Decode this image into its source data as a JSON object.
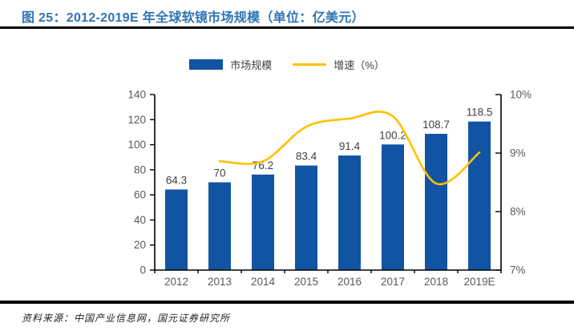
{
  "header": {
    "title": "图 25：2012-2019E 年全球软镜市场规模（单位：亿美元）"
  },
  "footer": {
    "source": "资料来源：中国产业信息网，国元证券研究所"
  },
  "colors": {
    "bar": "#1254A4",
    "line": "#FFC000",
    "title": "#2E74B5",
    "axis_line": "#000000",
    "axis_text": "#595959",
    "data_label": "#404040"
  },
  "chart_data": {
    "type": "bar",
    "subtype": "bar+line-combo",
    "title": "2012-2019E 年全球软镜市场规模",
    "unit": "亿美元",
    "categories": [
      "2012",
      "2013",
      "2014",
      "2015",
      "2016",
      "2017",
      "2018",
      "2019E"
    ],
    "series": [
      {
        "name": "市场规模",
        "type": "bar",
        "axis": "left",
        "values": [
          64.3,
          70,
          76.2,
          83.4,
          91.4,
          100.2,
          108.7,
          118.5
        ],
        "labels": [
          "64.3",
          "70",
          "76.2",
          "83.4",
          "91.4",
          "100.2",
          "108.7",
          "118.5"
        ]
      },
      {
        "name": "增速（%）",
        "type": "line",
        "axis": "right",
        "values": [
          null,
          8.86,
          8.86,
          9.45,
          9.59,
          9.63,
          8.48,
          9.01
        ]
      }
    ],
    "left_axis": {
      "min": 0,
      "max": 140,
      "step": 20,
      "ticks": [
        "0",
        "20",
        "40",
        "60",
        "80",
        "100",
        "120",
        "140"
      ]
    },
    "right_axis": {
      "min": 7,
      "max": 10,
      "step": 1,
      "ticks": [
        "7%",
        "8%",
        "9%",
        "10%"
      ]
    },
    "grid": false,
    "legend_position": "top-center"
  }
}
